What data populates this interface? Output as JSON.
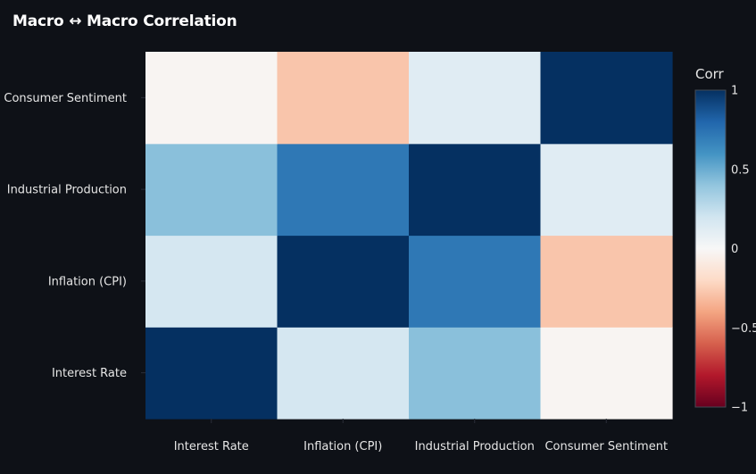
{
  "chart_data": {
    "type": "heatmap",
    "title": "Macro ↔ Macro Correlation",
    "x_categories": [
      "Interest Rate",
      "Inflation (CPI)",
      "Industrial Production",
      "Consumer Sentiment"
    ],
    "y_categories": [
      "Interest Rate",
      "Inflation (CPI)",
      "Industrial Production",
      "Consumer Sentiment"
    ],
    "values": [
      [
        1.0,
        0.18,
        0.42,
        -0.02
      ],
      [
        0.18,
        1.0,
        0.72,
        -0.28
      ],
      [
        0.42,
        0.72,
        1.0,
        0.12
      ],
      [
        -0.02,
        -0.28,
        0.12,
        1.0
      ]
    ],
    "colorbar": {
      "title": "Corr",
      "range": [
        -1,
        1
      ],
      "ticks": [
        1,
        0.5,
        0,
        -0.5,
        -1
      ],
      "tick_labels": [
        "1",
        "0.5",
        "0",
        "−0.5",
        "−1"
      ],
      "colorscale": "RdBu",
      "colors": [
        "#67001f",
        "#b2182b",
        "#d6604d",
        "#f4a582",
        "#fddbc7",
        "#f7f7f7",
        "#d1e5f0",
        "#92c5de",
        "#4393c3",
        "#2166ac",
        "#053061"
      ]
    },
    "y_order": "bottom-to-top"
  }
}
